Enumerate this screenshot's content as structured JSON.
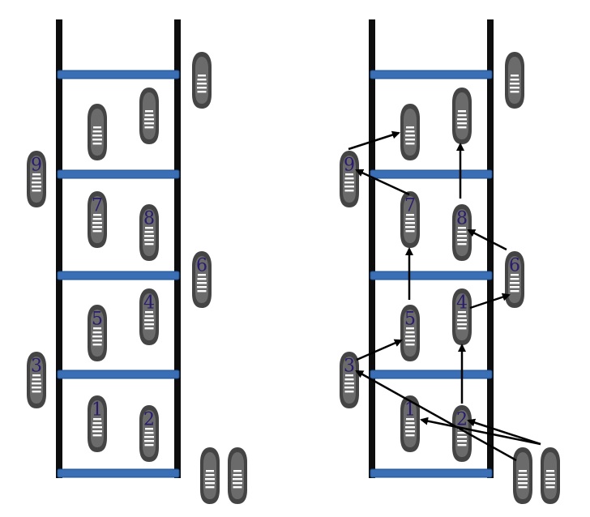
{
  "diagram": {
    "type": "agility-ladder-footwork",
    "panels": [
      {
        "id": "left",
        "shows_arrows": false
      },
      {
        "id": "right",
        "shows_arrows": true
      }
    ],
    "colors": {
      "rail": "#0d0d0d",
      "rung": "#3a6fb5",
      "shoe": "#444444",
      "lace": "#ffffff",
      "number": "#2b1b6e",
      "arrow": "#000000"
    },
    "steps": [
      {
        "label": "1"
      },
      {
        "label": "2"
      },
      {
        "label": "3"
      },
      {
        "label": "4"
      },
      {
        "label": "5"
      },
      {
        "label": "6"
      },
      {
        "label": "7"
      },
      {
        "label": "8"
      },
      {
        "label": "9"
      }
    ]
  }
}
